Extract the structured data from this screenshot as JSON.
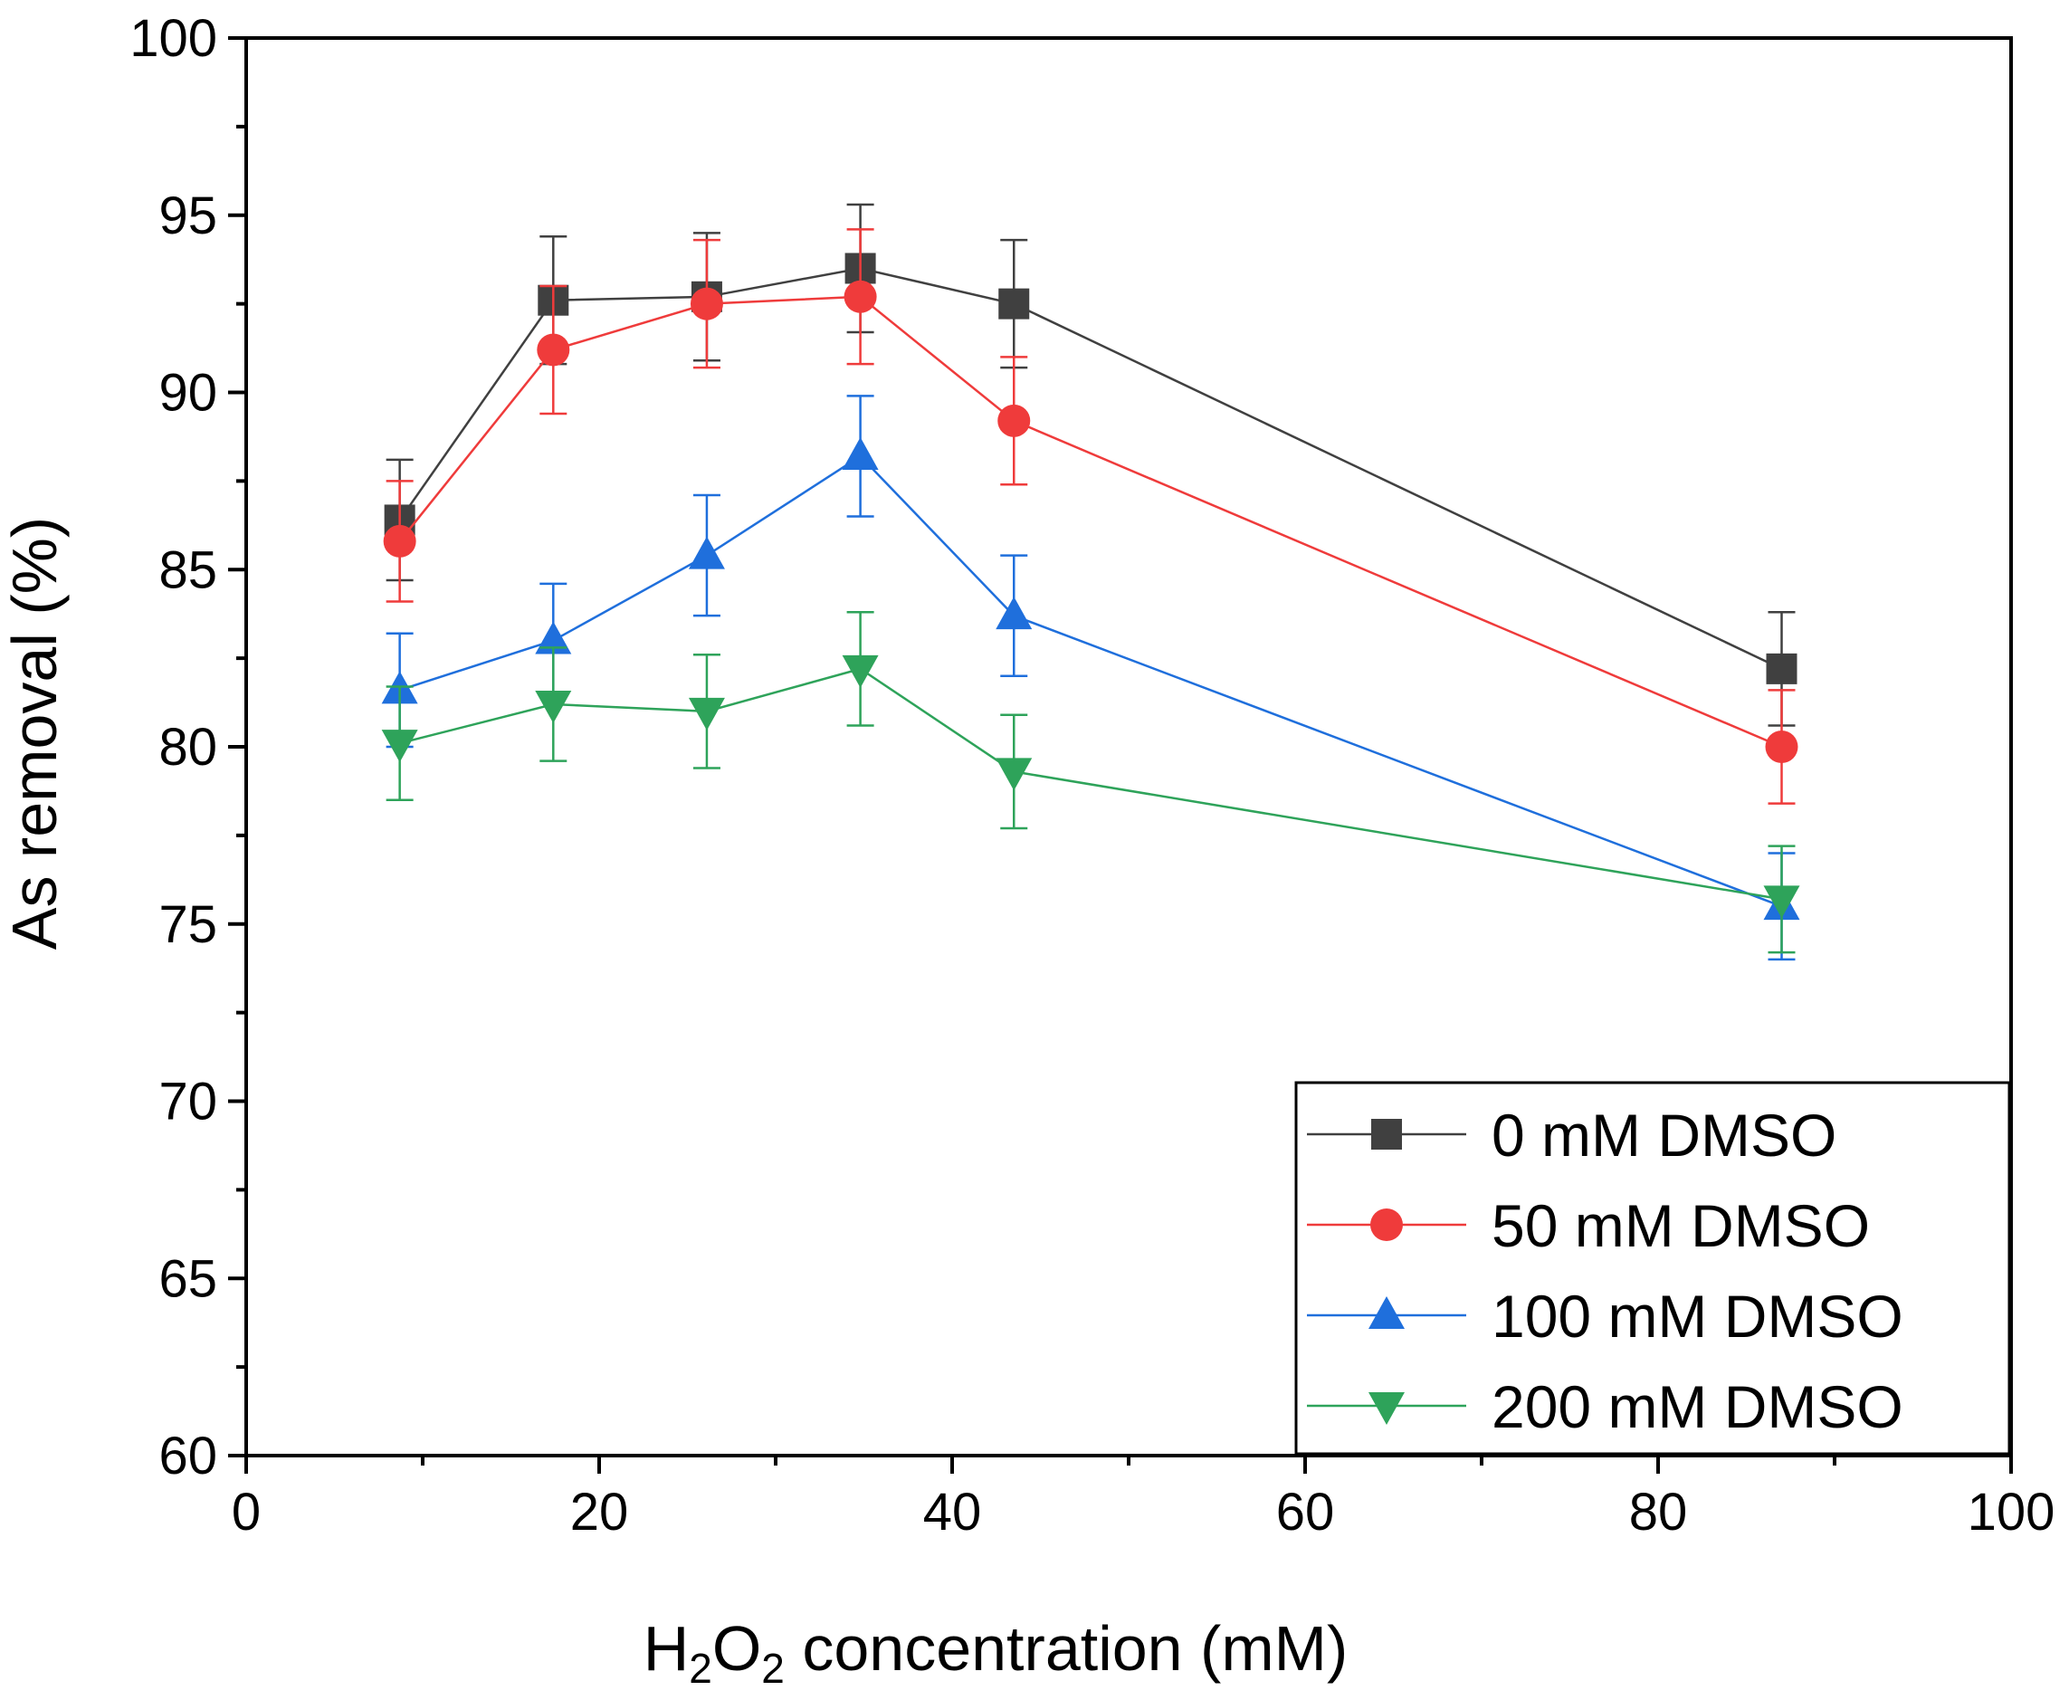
{
  "chart_data": {
    "type": "line",
    "title": "",
    "xlabel": {
      "prefix": "H",
      "sub1": "2",
      "mid": "O",
      "sub2": "2",
      "suffix": " concentration (mM)"
    },
    "ylabel": "As removal (%)",
    "xlim": [
      0,
      100
    ],
    "ylim": [
      60,
      100
    ],
    "x_ticks": [
      0,
      20,
      40,
      60,
      80,
      100
    ],
    "y_ticks": [
      60,
      65,
      70,
      75,
      80,
      85,
      90,
      95,
      100
    ],
    "x_ticks_minor": [
      10,
      30,
      50,
      70,
      90
    ],
    "y_ticks_minor": [
      62.5,
      67.5,
      72.5,
      77.5,
      82.5,
      87.5,
      92.5,
      97.5
    ],
    "grid": false,
    "legend_position": "bottom-right",
    "x": [
      8.7,
      17.4,
      26.1,
      34.8,
      43.5,
      87
    ],
    "series": [
      {
        "name": "0 mM DMSO",
        "marker": "square",
        "color": "#404040",
        "values": [
          86.4,
          92.6,
          92.7,
          93.5,
          92.5,
          82.2
        ],
        "errors": [
          1.7,
          1.8,
          1.8,
          1.8,
          1.8,
          1.6
        ]
      },
      {
        "name": "50 mM DMSO",
        "marker": "circle",
        "color": "#ef3b3b",
        "values": [
          85.8,
          91.2,
          92.5,
          92.7,
          89.2,
          80.0
        ],
        "errors": [
          1.7,
          1.8,
          1.8,
          1.9,
          1.8,
          1.6
        ]
      },
      {
        "name": "100 mM DMSO",
        "marker": "triangle-up",
        "color": "#1f6fdc",
        "values": [
          81.6,
          83.0,
          85.4,
          88.2,
          83.7,
          75.5
        ],
        "errors": [
          1.6,
          1.6,
          1.7,
          1.7,
          1.7,
          1.5
        ]
      },
      {
        "name": "200 mM DMSO",
        "marker": "triangle-down",
        "color": "#2ea35a",
        "values": [
          80.1,
          81.2,
          81.0,
          82.2,
          79.3,
          75.7
        ],
        "errors": [
          1.6,
          1.6,
          1.6,
          1.6,
          1.6,
          1.5
        ]
      }
    ]
  }
}
